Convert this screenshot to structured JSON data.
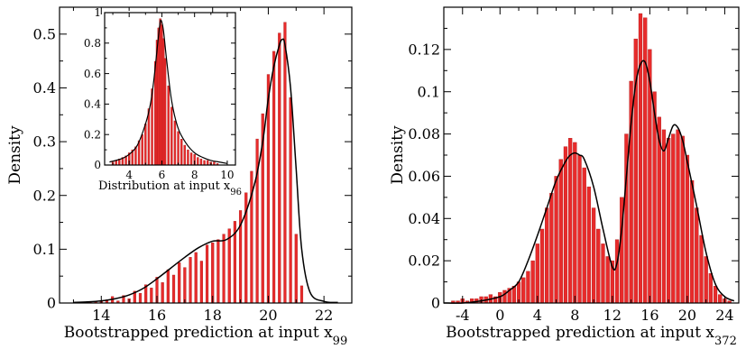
{
  "chart_data": [
    {
      "id": "left",
      "type": "bar",
      "xlabel": "Bootstrapped prediction at input x",
      "xlabel_sub": "99",
      "ylabel": "Density",
      "xlim": [
        12.5,
        23
      ],
      "ylim": [
        0,
        0.55
      ],
      "xticks": [
        14,
        16,
        18,
        20,
        22
      ],
      "yticks": [
        0,
        0.1,
        0.2,
        0.3,
        0.4,
        0.5
      ],
      "bar_color": "#e82b2b",
      "curve_color": "#000000",
      "bars": {
        "x": [
          13.6,
          13.8,
          14.0,
          14.2,
          14.4,
          14.6,
          14.8,
          15.0,
          15.2,
          15.4,
          15.6,
          15.8,
          16.0,
          16.2,
          16.4,
          16.6,
          16.8,
          17.0,
          17.2,
          17.4,
          17.6,
          17.8,
          18.0,
          18.2,
          18.4,
          18.6,
          18.8,
          19.0,
          19.2,
          19.4,
          19.6,
          19.8,
          20.0,
          20.2,
          20.4,
          20.6,
          20.8,
          21.0,
          21.2
        ],
        "y": [
          0.002,
          0.003,
          0.004,
          0.006,
          0.012,
          0.004,
          0.014,
          0.008,
          0.022,
          0.018,
          0.034,
          0.028,
          0.048,
          0.038,
          0.062,
          0.052,
          0.075,
          0.066,
          0.085,
          0.094,
          0.078,
          0.108,
          0.112,
          0.118,
          0.128,
          0.138,
          0.152,
          0.172,
          0.205,
          0.245,
          0.305,
          0.352,
          0.425,
          0.468,
          0.502,
          0.522,
          0.382,
          0.128,
          0.032
        ]
      },
      "curve": {
        "x": [
          13.0,
          13.5,
          14.0,
          14.5,
          15.0,
          15.5,
          16.0,
          16.5,
          17.0,
          17.5,
          18.0,
          18.5,
          19.0,
          19.5,
          19.8,
          20.0,
          20.2,
          20.4,
          20.5,
          20.6,
          20.8,
          21.0,
          21.2,
          21.5,
          22.0,
          22.5
        ],
        "y": [
          0.001,
          0.002,
          0.004,
          0.008,
          0.015,
          0.027,
          0.045,
          0.065,
          0.085,
          0.103,
          0.115,
          0.118,
          0.145,
          0.22,
          0.3,
          0.38,
          0.44,
          0.48,
          0.49,
          0.48,
          0.4,
          0.25,
          0.1,
          0.02,
          0.003,
          0.001
        ]
      },
      "inset": {
        "xlabel": "Distribution at input x",
        "xlabel_sub": "96",
        "xlim": [
          2.5,
          10.5
        ],
        "ylim": [
          0,
          1.0
        ],
        "xticks": [
          4,
          6,
          8,
          10
        ],
        "yticks": [
          0,
          0.2,
          0.4,
          0.6,
          0.8,
          1
        ],
        "bars": {
          "x": [
            3.0,
            3.2,
            3.4,
            3.6,
            3.8,
            4.0,
            4.2,
            4.4,
            4.6,
            4.8,
            5.0,
            5.2,
            5.4,
            5.6,
            5.7,
            5.8,
            5.9,
            6.0,
            6.1,
            6.2,
            6.4,
            6.6,
            6.8,
            7.0,
            7.2,
            7.4,
            7.6,
            7.8,
            8.0,
            8.2,
            8.4,
            8.6,
            8.8,
            9.0,
            9.2,
            9.4
          ],
          "y": [
            0.02,
            0.03,
            0.04,
            0.05,
            0.06,
            0.08,
            0.1,
            0.12,
            0.16,
            0.2,
            0.27,
            0.37,
            0.5,
            0.68,
            0.82,
            0.9,
            0.96,
            0.92,
            0.83,
            0.7,
            0.52,
            0.38,
            0.29,
            0.22,
            0.17,
            0.13,
            0.1,
            0.08,
            0.07,
            0.05,
            0.04,
            0.03,
            0.03,
            0.02,
            0.02,
            0.01
          ]
        },
        "curve": {
          "x": [
            2.8,
            3.5,
            4.0,
            4.5,
            5.0,
            5.3,
            5.5,
            5.7,
            5.85,
            5.95,
            6.1,
            6.3,
            6.6,
            7.0,
            7.5,
            8.0,
            8.5,
            9.0,
            9.5,
            10.0
          ],
          "y": [
            0.02,
            0.04,
            0.07,
            0.13,
            0.27,
            0.4,
            0.55,
            0.75,
            0.9,
            0.95,
            0.88,
            0.68,
            0.42,
            0.24,
            0.14,
            0.08,
            0.05,
            0.03,
            0.02,
            0.01
          ]
        }
      }
    },
    {
      "id": "right",
      "type": "bar",
      "xlabel": "Bootstrapped prediction at input x",
      "xlabel_sub": "372",
      "ylabel": "Density",
      "xlim": [
        -6,
        25.5
      ],
      "ylim": [
        0,
        0.14
      ],
      "xticks": [
        -4,
        0,
        4,
        8,
        12,
        16,
        20,
        24
      ],
      "yticks": [
        0,
        0.02,
        0.04,
        0.06,
        0.08,
        0.1,
        0.12
      ],
      "bar_color": "#e82b2b",
      "curve_color": "#000000",
      "bars": {
        "x": [
          -5.0,
          -4.5,
          -4.0,
          -3.5,
          -3.0,
          -2.5,
          -2.0,
          -1.5,
          -1.0,
          -0.5,
          0.0,
          0.5,
          1.0,
          1.5,
          2.0,
          2.5,
          3.0,
          3.5,
          4.0,
          4.5,
          5.0,
          5.5,
          6.0,
          6.5,
          7.0,
          7.5,
          8.0,
          8.5,
          9.0,
          9.5,
          10.0,
          10.5,
          11.0,
          11.5,
          12.0,
          12.5,
          13.0,
          13.5,
          14.0,
          14.5,
          15.0,
          15.5,
          16.0,
          16.5,
          17.0,
          17.5,
          18.0,
          18.5,
          19.0,
          19.5,
          20.0,
          20.5,
          21.0,
          21.5,
          22.0,
          22.5,
          23.0,
          23.5,
          24.0,
          24.5
        ],
        "y": [
          0.001,
          0.001,
          0.002,
          0.001,
          0.002,
          0.002,
          0.003,
          0.003,
          0.004,
          0.003,
          0.005,
          0.006,
          0.007,
          0.008,
          0.01,
          0.012,
          0.015,
          0.02,
          0.028,
          0.035,
          0.045,
          0.052,
          0.06,
          0.068,
          0.074,
          0.078,
          0.076,
          0.07,
          0.064,
          0.055,
          0.045,
          0.035,
          0.028,
          0.022,
          0.02,
          0.03,
          0.05,
          0.08,
          0.105,
          0.125,
          0.137,
          0.135,
          0.12,
          0.1,
          0.088,
          0.082,
          0.078,
          0.08,
          0.082,
          0.079,
          0.07,
          0.058,
          0.045,
          0.032,
          0.022,
          0.014,
          0.008,
          0.004,
          0.002,
          0.001
        ]
      },
      "curve": {
        "x": [
          -6,
          -4,
          -2,
          0,
          1,
          2,
          3,
          4,
          5,
          6,
          7,
          7.5,
          8,
          8.5,
          9,
          10,
          11,
          12,
          12.5,
          13,
          13.5,
          14,
          14.5,
          15,
          15.5,
          16,
          16.5,
          17,
          17.5,
          18,
          18.5,
          19,
          19.5,
          20,
          21,
          22,
          23,
          24,
          25
        ],
        "y": [
          0,
          0,
          0.001,
          0.003,
          0.006,
          0.01,
          0.02,
          0.032,
          0.045,
          0.058,
          0.067,
          0.07,
          0.071,
          0.07,
          0.068,
          0.055,
          0.035,
          0.017,
          0.019,
          0.035,
          0.06,
          0.085,
          0.104,
          0.113,
          0.114,
          0.105,
          0.09,
          0.077,
          0.072,
          0.078,
          0.084,
          0.083,
          0.077,
          0.067,
          0.046,
          0.024,
          0.009,
          0.003,
          0.001
        ]
      }
    }
  ]
}
